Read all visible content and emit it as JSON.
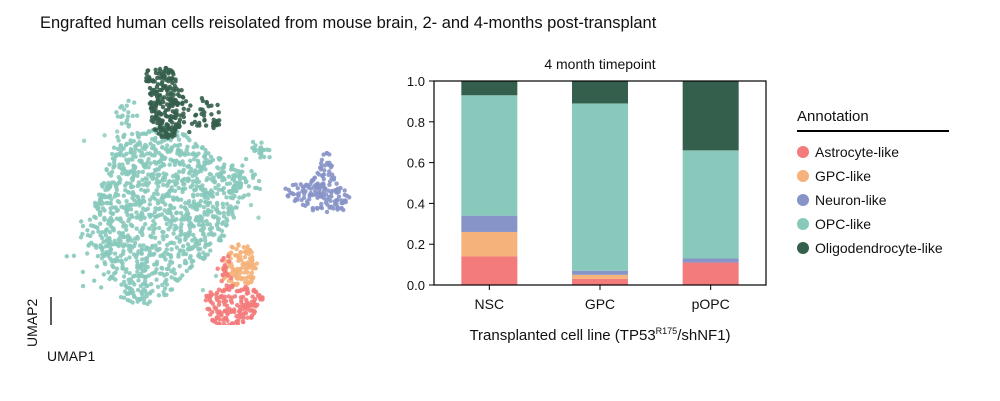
{
  "figure": {
    "title": "Engrafted human cells reisolated from mouse brain, 2- and 4-months post-transplant",
    "umap": {
      "x_axis_label": "UMAP1",
      "y_axis_label": "UMAP2"
    }
  },
  "legend": {
    "title": "Annotation",
    "items": [
      {
        "label": "Astrocyte-like",
        "color": "#f47b7b"
      },
      {
        "label": "GPC-like",
        "color": "#f5b27a"
      },
      {
        "label": "Neuron-like",
        "color": "#8794c8"
      },
      {
        "label": "OPC-like",
        "color": "#88c9bc"
      },
      {
        "label": "Oligodendrocyte-like",
        "color": "#355f4d"
      }
    ]
  },
  "chart_data": {
    "type": "bar",
    "stacked": true,
    "title": "4 month  timepoint",
    "xlabel_main": "Transplanted  cell line (TP53",
    "xlabel_sup": "R175",
    "xlabel_end": "/shNF1)",
    "ylabel": "",
    "ylim": [
      0,
      1.0
    ],
    "yticks": [
      "0.0",
      "0.2",
      "0.4",
      "0.6",
      "0.8",
      "1.0"
    ],
    "categories": [
      "NSC",
      "GPC",
      "pOPC"
    ],
    "series": [
      {
        "name": "Astrocyte-like",
        "color": "#f47b7b",
        "values": [
          0.14,
          0.03,
          0.11
        ]
      },
      {
        "name": "GPC-like",
        "color": "#f5b27a",
        "values": [
          0.12,
          0.02,
          0.0
        ]
      },
      {
        "name": "Neuron-like",
        "color": "#8794c8",
        "values": [
          0.08,
          0.02,
          0.02
        ]
      },
      {
        "name": "OPC-like",
        "color": "#88c9bc",
        "values": [
          0.59,
          0.82,
          0.53
        ]
      },
      {
        "name": "Oligodendrocyte-like",
        "color": "#355f4d",
        "values": [
          0.07,
          0.11,
          0.34
        ]
      }
    ],
    "grid": false,
    "legend_position": "right"
  }
}
